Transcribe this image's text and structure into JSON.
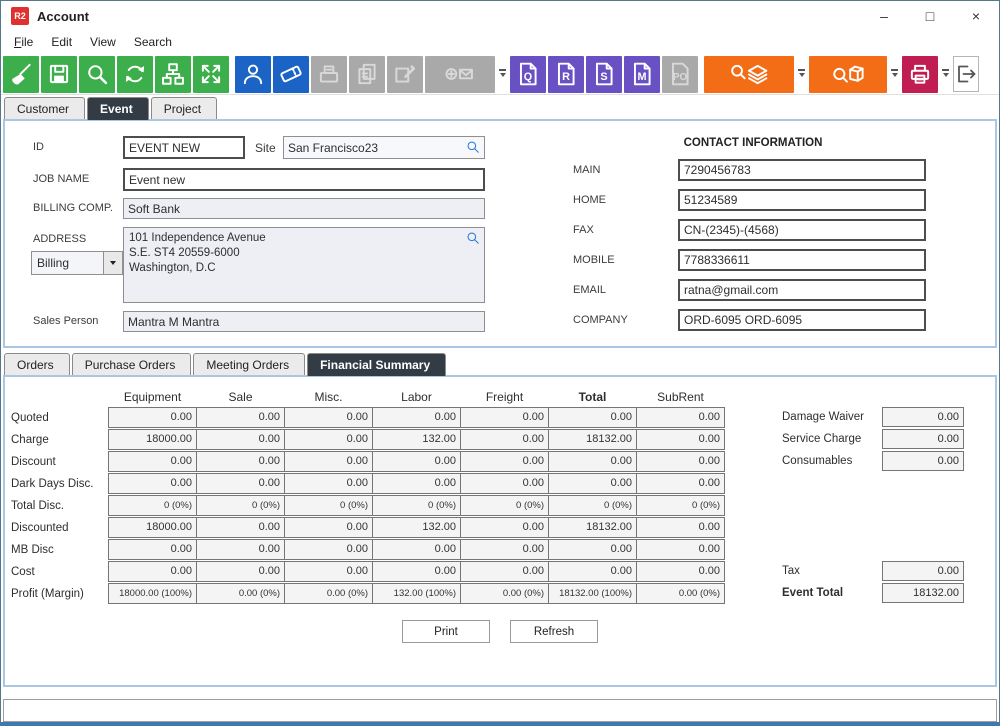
{
  "window": {
    "title": "Account",
    "logo_text": "R2",
    "controls": {
      "minimize": "–",
      "maximize": "□",
      "close": "×"
    }
  },
  "menu": {
    "items": [
      "File",
      "Edit",
      "View",
      "Search"
    ]
  },
  "toolbar": {
    "doc_buttons": [
      "Q",
      "R",
      "S",
      "M"
    ],
    "po_label": "PO"
  },
  "tabs": {
    "items": [
      "Customer",
      "Event",
      "Project"
    ],
    "active": "Event"
  },
  "form": {
    "id": {
      "label": "ID",
      "value": "EVENT NEW"
    },
    "site": {
      "label": "Site",
      "value": "San Francisco23"
    },
    "job_name": {
      "label": "JOB NAME",
      "value": "Event new"
    },
    "billing_comp": {
      "label": "BILLING COMP.",
      "value": "Soft Bank"
    },
    "address": {
      "label": "ADDRESS",
      "type_value": "Billing",
      "lines": [
        "101 Independence Avenue",
        "S.E. ST4 20559-6000",
        "Washington, D.C"
      ]
    },
    "sales_person": {
      "label": "Sales Person",
      "value": "Mantra M Mantra"
    }
  },
  "contact": {
    "header": "CONTACT INFORMATION",
    "fields": [
      {
        "label": "MAIN",
        "value": "7290456783"
      },
      {
        "label": "HOME",
        "value": "51234589"
      },
      {
        "label": "FAX",
        "value": "CN-(2345)-(4568)"
      },
      {
        "label": "MOBILE",
        "value": "7788336611"
      },
      {
        "label": "EMAIL",
        "value": "ratna@gmail.com"
      },
      {
        "label": "COMPANY",
        "value": "ORD-6095 ORD-6095"
      }
    ]
  },
  "subtabs": {
    "items": [
      "Orders",
      "Purchase Orders",
      "Meeting Orders",
      "Financial Summary"
    ],
    "active": "Financial Summary"
  },
  "financial": {
    "columns": [
      "Equipment",
      "Sale",
      "Misc.",
      "Labor",
      "Freight",
      "Total",
      "SubRent"
    ],
    "rows": [
      {
        "label": "Quoted",
        "values": [
          "0.00",
          "0.00",
          "0.00",
          "0.00",
          "0.00",
          "0.00",
          "0.00"
        ]
      },
      {
        "label": "Charge",
        "values": [
          "18000.00",
          "0.00",
          "0.00",
          "132.00",
          "0.00",
          "18132.00",
          "0.00"
        ]
      },
      {
        "label": "Discount",
        "values": [
          "0.00",
          "0.00",
          "0.00",
          "0.00",
          "0.00",
          "0.00",
          "0.00"
        ]
      },
      {
        "label": "Dark Days Disc.",
        "values": [
          "0.00",
          "0.00",
          "0.00",
          "0.00",
          "0.00",
          "0.00",
          "0.00"
        ]
      },
      {
        "label": "Total Disc.",
        "values": [
          "0 (0%)",
          "0 (0%)",
          "0 (0%)",
          "0 (0%)",
          "0 (0%)",
          "0 (0%)",
          "0 (0%)"
        ]
      },
      {
        "label": "Discounted",
        "values": [
          "18000.00",
          "0.00",
          "0.00",
          "132.00",
          "0.00",
          "18132.00",
          "0.00"
        ]
      },
      {
        "label": "MB Disc",
        "values": [
          "0.00",
          "0.00",
          "0.00",
          "0.00",
          "0.00",
          "0.00",
          "0.00"
        ]
      },
      {
        "label": "Cost",
        "values": [
          "0.00",
          "0.00",
          "0.00",
          "0.00",
          "0.00",
          "0.00",
          "0.00"
        ]
      },
      {
        "label": "Profit (Margin)",
        "values": [
          "18000.00 (100%)",
          "0.00 (0%)",
          "0.00 (0%)",
          "132.00 (100%)",
          "0.00 (0%)",
          "18132.00 (100%)",
          "0.00 (0%)"
        ]
      }
    ],
    "side_top": [
      {
        "label": "Damage Waiver",
        "value": "0.00"
      },
      {
        "label": "Service Charge",
        "value": "0.00"
      },
      {
        "label": "Consumables",
        "value": "0.00"
      }
    ],
    "side_bottom": [
      {
        "label": "Tax",
        "value": "0.00",
        "bold": false
      },
      {
        "label": "Event Total",
        "value": "18132.00",
        "bold": true
      }
    ]
  },
  "buttons": {
    "print": "Print",
    "refresh": "Refresh"
  },
  "colors": {
    "toolbar_green": "#3cae4b",
    "toolbar_blue": "#1b63c5",
    "toolbar_purple": "#6950c3",
    "toolbar_orange": "#f36d16",
    "toolbar_crimson": "#c01d52",
    "active_tab": "#333b44",
    "logo_red": "#e03131",
    "panel_border": "#aac6e2",
    "search_icon_blue": "#2d7cd6"
  }
}
